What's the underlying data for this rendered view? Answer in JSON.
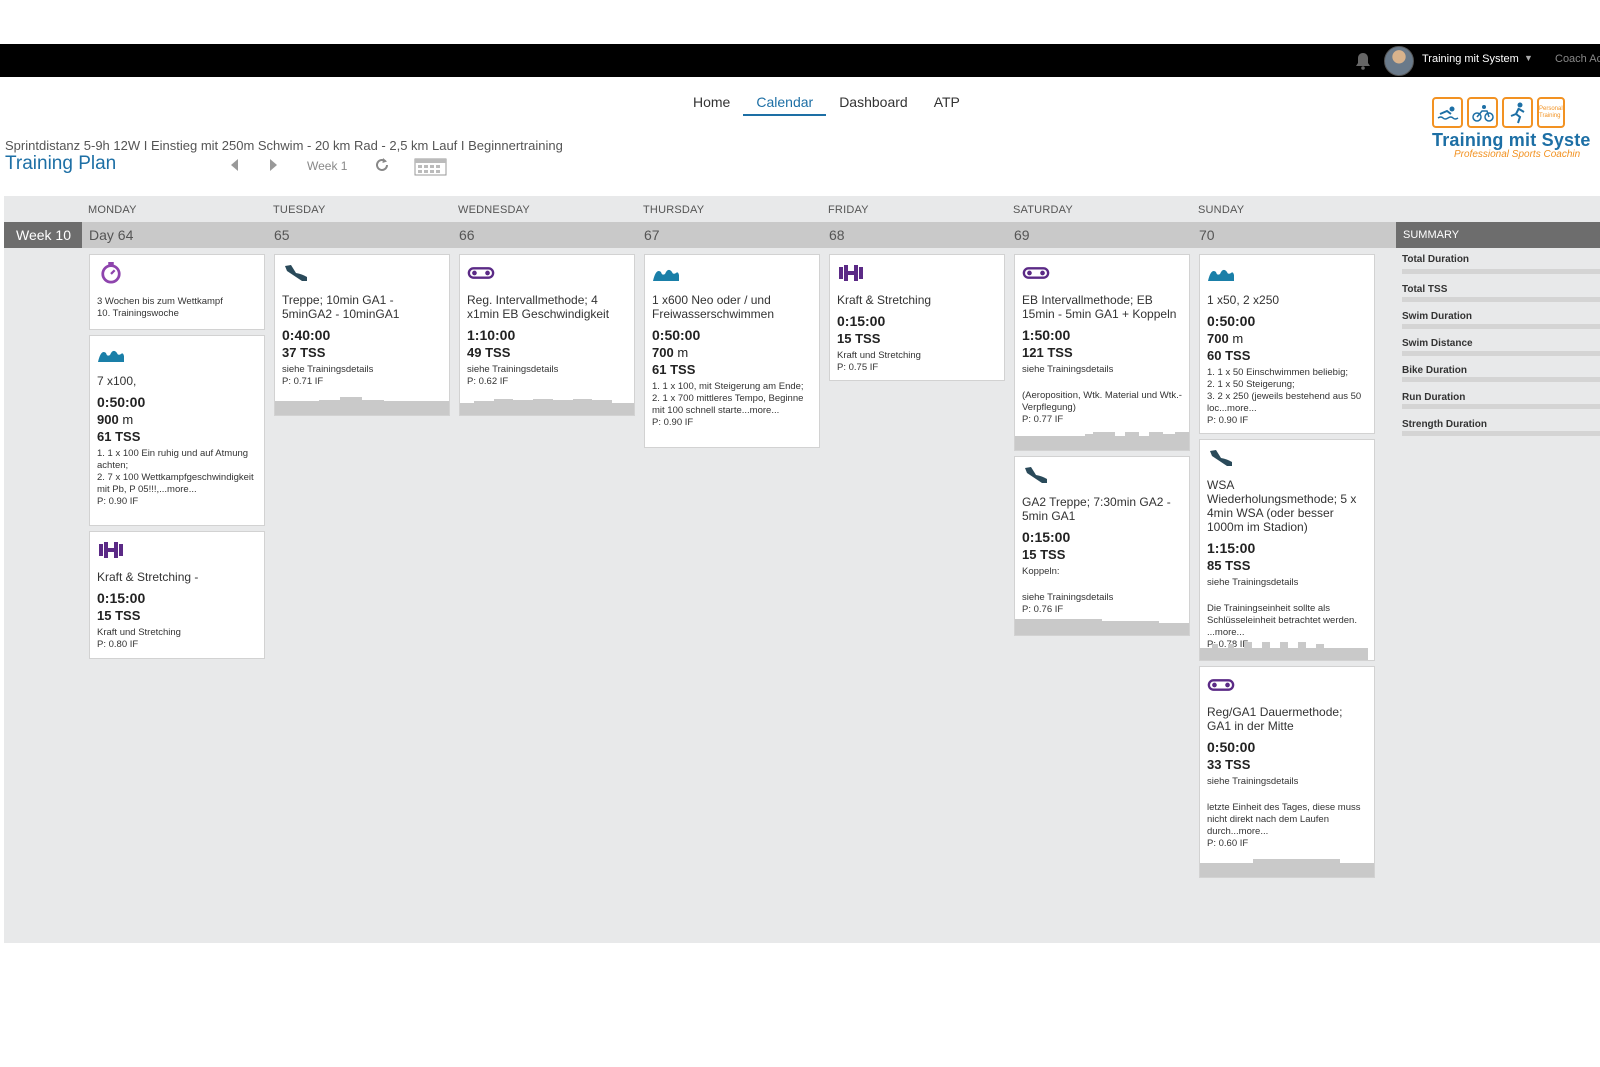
{
  "header": {
    "user_name": "Training mit System",
    "coach_label": "Coach Ac"
  },
  "nav": {
    "items": [
      "Home",
      "Calendar",
      "Dashboard",
      "ATP"
    ],
    "active": "Calendar"
  },
  "plan": {
    "subtitle": "Sprintdistanz 5-9h 12W I Einstieg mit 250m Schwim - 20 km Rad - 2,5 km Lauf I Beginnertraining",
    "title": "Training Plan",
    "week_selector": "Week 1"
  },
  "logo": {
    "brand": "Training mit Syste",
    "tagline": "Professional Sports Coachin",
    "badge": "Personal Training"
  },
  "calendar": {
    "days_of_week": [
      "MONDAY",
      "TUESDAY",
      "WEDNESDAY",
      "THURSDAY",
      "FRIDAY",
      "SATURDAY",
      "SUNDAY"
    ],
    "week_label": "Week 10",
    "day_numbers": [
      "Day 64",
      "65",
      "66",
      "67",
      "68",
      "69",
      "70"
    ],
    "summary": {
      "heading": "SUMMARY",
      "items": [
        "Total Duration",
        "Total TSS",
        "Swim Duration",
        "Swim Distance",
        "Bike Duration",
        "Run Duration",
        "Strength Duration"
      ]
    }
  },
  "workouts": {
    "mon_event": {
      "icon": "stopwatch-icon",
      "desc": "3 Wochen bis zum Wettkampf\n10. Trainingswoche"
    },
    "mon_swim": {
      "icon": "swim-icon",
      "title": "7 x100,",
      "duration": "0:50:00",
      "distance": "900",
      "distance_unit": "m",
      "tss": "61",
      "tss_unit": "TSS",
      "desc": "1. 1 x 100 Ein ruhig und auf Atmung achten;\n2. 7 x 100 Wettkampfgeschwindigkeit mit Pb, P 05!!!,...more...\nP: 0.90 IF"
    },
    "mon_strength": {
      "icon": "dumbbell-icon",
      "title": "Kraft & Stretching -",
      "duration": "0:15:00",
      "tss": "15",
      "tss_unit": "TSS",
      "desc": "Kraft und Stretching\nP: 0.80 IF"
    },
    "tue_run": {
      "icon": "run-shoe-icon",
      "title": "Treppe; 10min GA1 - 5minGA2 - 10minGA1",
      "duration": "0:40:00",
      "tss": "37",
      "tss_unit": "TSS",
      "desc": "siehe Trainingsdetails\nP: 0.71 IF"
    },
    "wed_bike": {
      "icon": "bike-chain-icon",
      "title": "Reg. Intervallmethode; 4 x1min EB Geschwindigkeit",
      "duration": "1:10:00",
      "tss": "49",
      "tss_unit": "TSS",
      "desc": "siehe Trainingsdetails\nP: 0.62 IF"
    },
    "thu_swim": {
      "icon": "swim-icon",
      "title": "1 x600 Neo oder / und Freiwasserschwimmen",
      "duration": "0:50:00",
      "distance": "700",
      "distance_unit": "m",
      "tss": "61",
      "tss_unit": "TSS",
      "desc": "1. 1 x 100, mit Steigerung am Ende;\n2. 1 x 700 mittleres Tempo, Beginne mit 100 schnell starte...more...\nP: 0.90 IF"
    },
    "fri_strength": {
      "icon": "dumbbell-icon",
      "title": "Kraft & Stretching",
      "duration": "0:15:00",
      "tss": "15",
      "tss_unit": "TSS",
      "desc": "Kraft und Stretching\nP: 0.75 IF"
    },
    "sat_bike": {
      "icon": "bike-chain-icon",
      "title": "EB Intervallmethode; EB 15min - 5min GA1 + Koppeln",
      "duration": "1:50:00",
      "tss": "121",
      "tss_unit": "TSS",
      "desc1": "siehe Trainingsdetails",
      "desc2": "(Aeroposition, Wtk. Material und Wtk.-Verpflegung)\nP: 0.77 IF"
    },
    "sat_run": {
      "icon": "run-shoe-icon",
      "title": "GA2 Treppe; 7:30min GA2 - 5min GA1",
      "duration": "0:15:00",
      "tss": "15",
      "tss_unit": "TSS",
      "desc1": "Koppeln:",
      "desc2": "siehe Trainingsdetails\nP: 0.76 IF"
    },
    "sun_swim": {
      "icon": "swim-icon",
      "title": "1 x50, 2 x250",
      "duration": "0:50:00",
      "distance": "700",
      "distance_unit": "m",
      "tss": "60",
      "tss_unit": "TSS",
      "desc": "1. 1 x 50 Einschwimmen beliebig;\n2. 1 x 50 Steigerung;\n3. 2 x 250 (jeweils bestehend aus 50 loc...more...\nP: 0.90 IF"
    },
    "sun_run": {
      "icon": "run-shoe-icon",
      "title": "WSA Wiederholungsmethode; 5 x 4min WSA (oder besser 1000m im Stadion)",
      "duration": "1:15:00",
      "tss": "85",
      "tss_unit": "TSS",
      "desc1": "siehe Trainingsdetails",
      "desc2": "Die Trainingseinheit sollte als Schlüsseleinheit betrachtet werden. ...more...\nP: 0.78 IF"
    },
    "sun_bike": {
      "icon": "bike-chain-icon",
      "title": "Reg/GA1 Dauermethode; GA1 in der Mitte",
      "duration": "0:50:00",
      "tss": "33",
      "tss_unit": "TSS",
      "desc1": "siehe Trainingsdetails",
      "desc2": "letzte Einheit des Tages, diese muss nicht direkt nach dem Laufen durch...more...\nP: 0.60 IF"
    }
  },
  "colors": {
    "swim": "#1a7fa8",
    "run": "#2a4a5a",
    "bike": "#5b2a86",
    "strength": "#5b2a86",
    "event": "#8e44ad",
    "accent": "#1d6fa5",
    "logo_orange": "#f29222"
  }
}
